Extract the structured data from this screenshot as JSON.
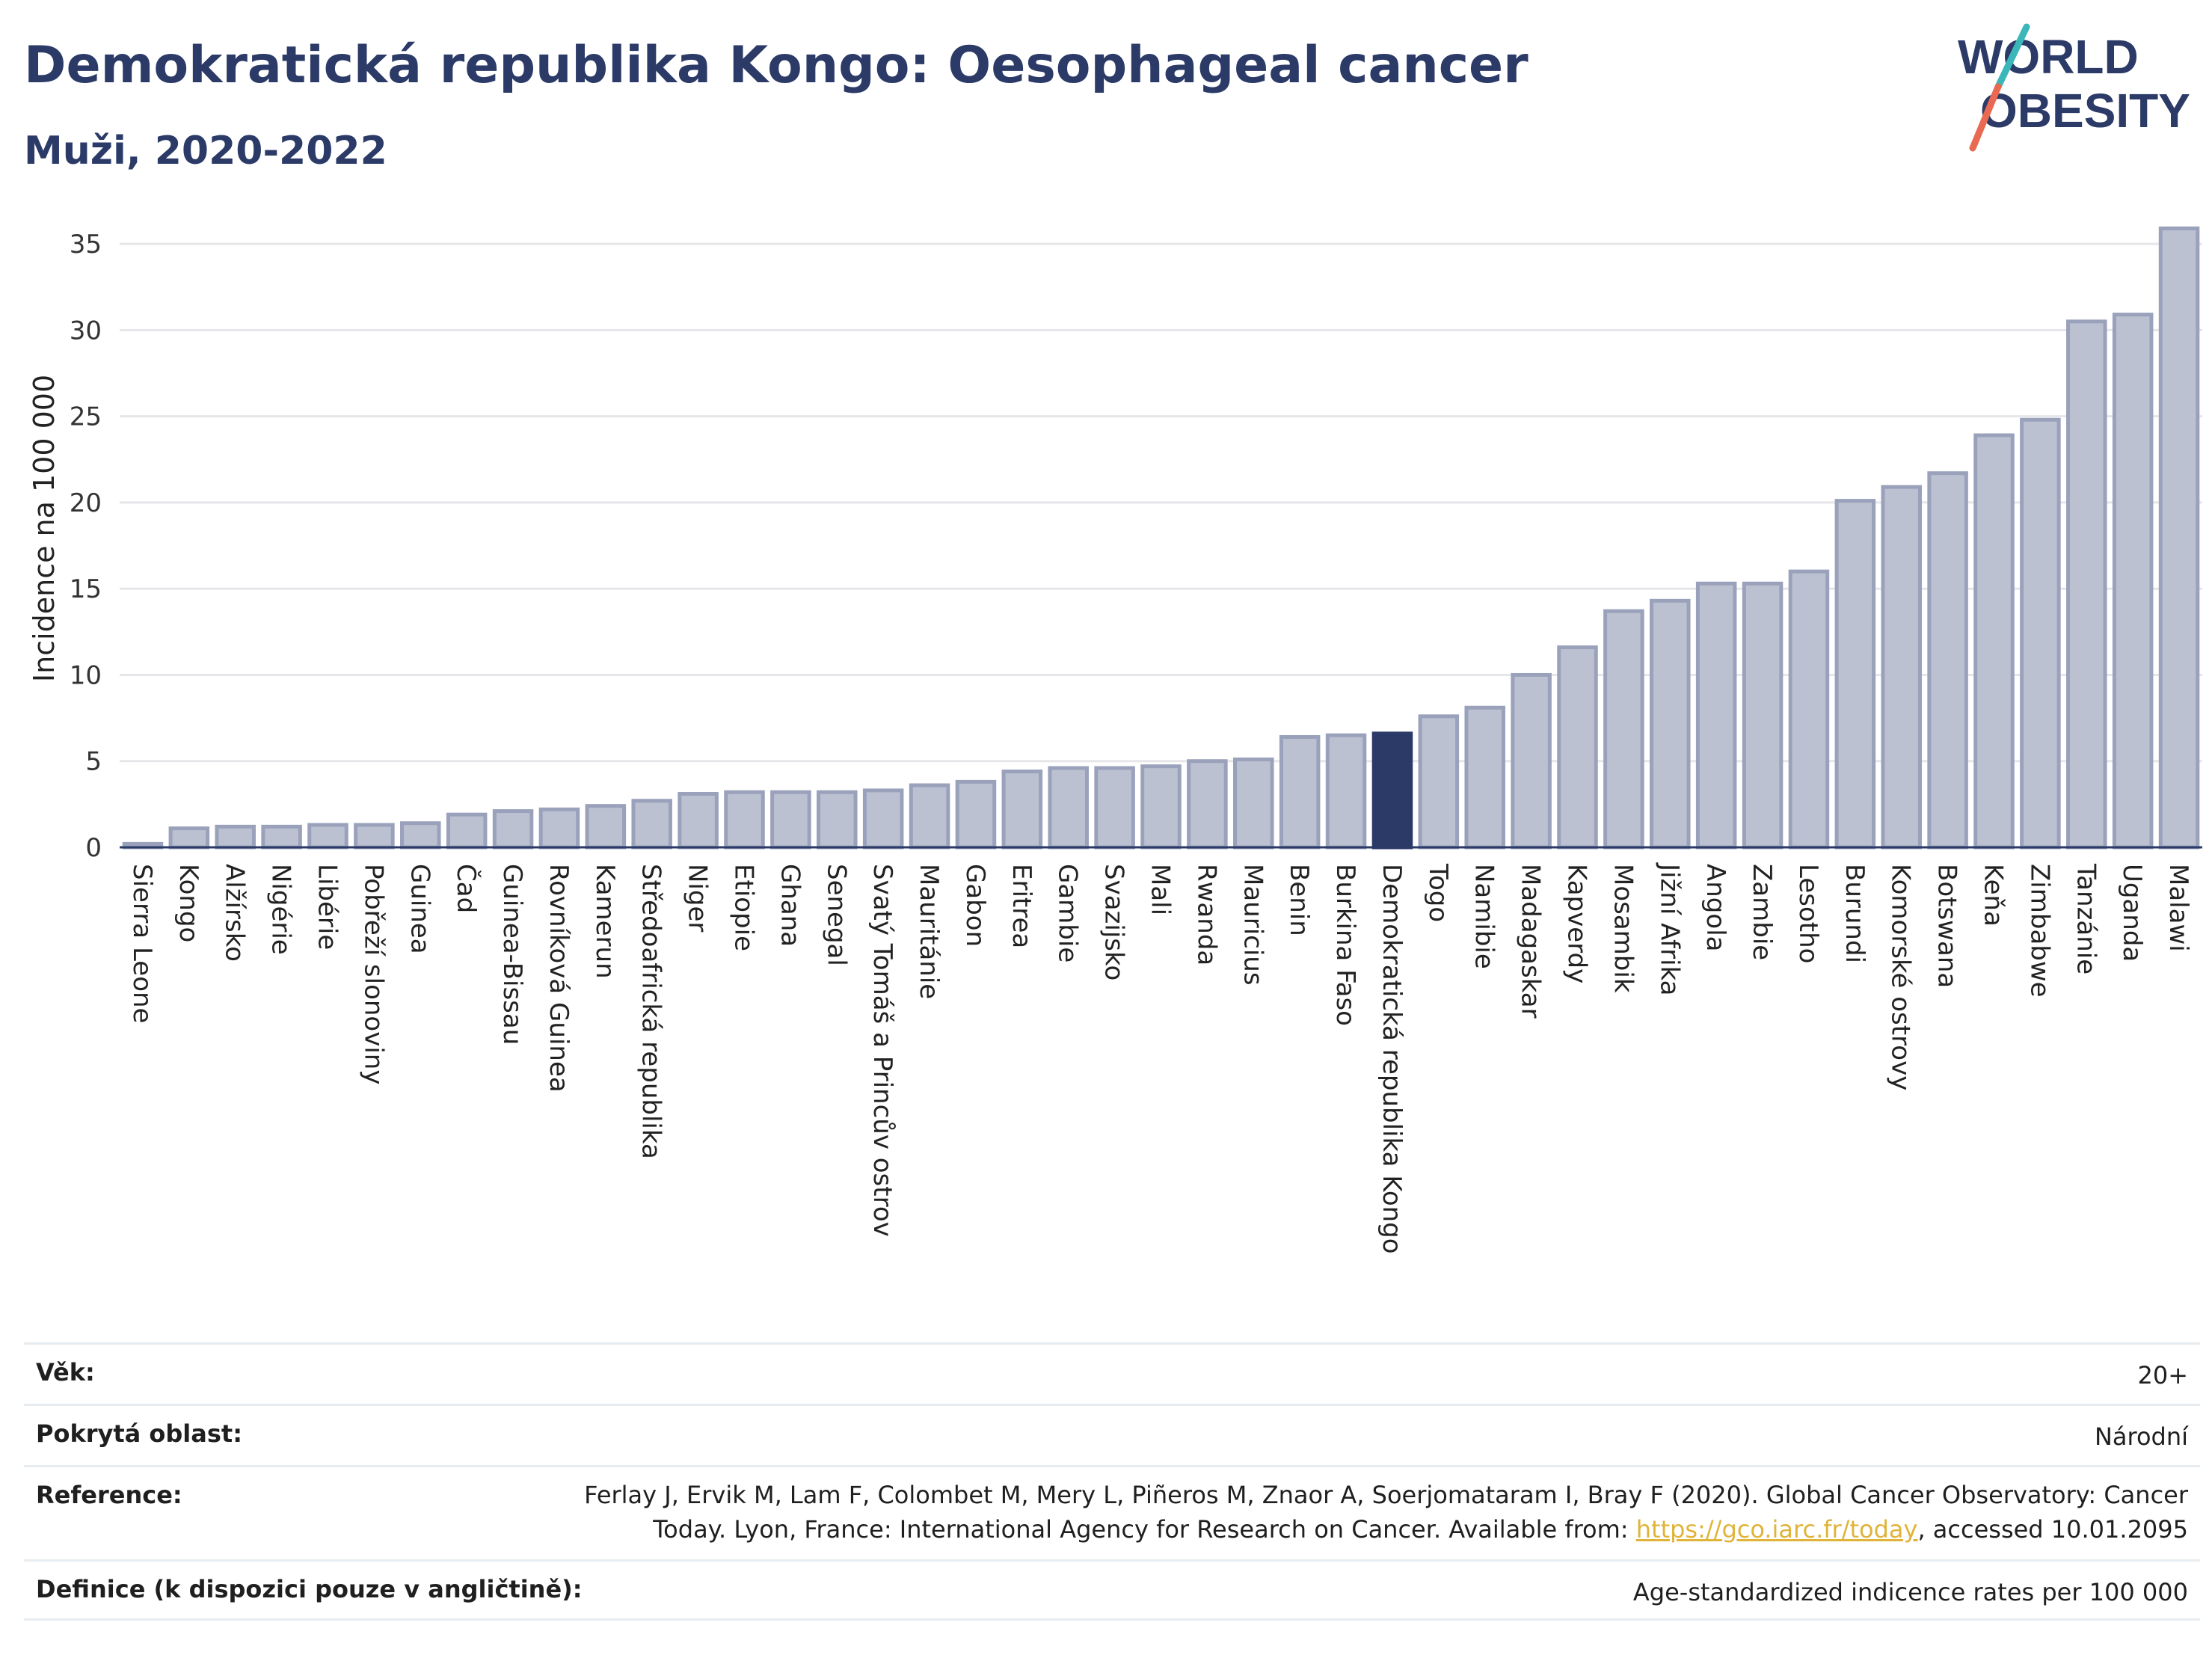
{
  "header": {
    "title": "Demokratická republika Kongo: Oesophageal cancer",
    "subtitle": "Muži, 2020-2022"
  },
  "logo": {
    "line1": "WORLD",
    "line2": "OBESITY",
    "text_color": "#2b3a67",
    "slash_colors": [
      "#3bb6b9",
      "#e96a52"
    ]
  },
  "chart_data": {
    "type": "bar",
    "ylabel": "Incidence na 100 000",
    "ylim": [
      0,
      37
    ],
    "yticks": [
      0,
      5,
      10,
      15,
      20,
      25,
      30,
      35
    ],
    "grid": true,
    "highlight": "Demokratická republika Kongo",
    "colors": {
      "bar": "#bcc1d1",
      "bar_border": "#9aa1bb",
      "highlight": "#2b3a67",
      "grid": "#e6e6ea"
    },
    "categories": [
      "Sierra Leone",
      "Kongo",
      "Alžírsko",
      "Nigérie",
      "Libérie",
      "Pobřeží slonoviny",
      "Guinea",
      "Čad",
      "Guinea-Bissau",
      "Rovníková Guinea",
      "Kamerun",
      "Středoafrická republika",
      "Niger",
      "Etiopie",
      "Ghana",
      "Senegal",
      "Svatý Tomáš a Princův ostrov",
      "Mauritánie",
      "Gabon",
      "Eritrea",
      "Gambie",
      "Svazijsko",
      "Mali",
      "Rwanda",
      "Mauricius",
      "Benin",
      "Burkina Faso",
      "Demokratická republika Kongo",
      "Togo",
      "Namibie",
      "Madagaskar",
      "Kapverdy",
      "Mosambik",
      "Jižní Afrika",
      "Angola",
      "Zambie",
      "Lesotho",
      "Burundi",
      "Komorské ostrovy",
      "Botswana",
      "Keňa",
      "Zimbabwe",
      "Tanzánie",
      "Uganda",
      "Malawi"
    ],
    "values": [
      0.2,
      1.1,
      1.2,
      1.2,
      1.3,
      1.3,
      1.4,
      1.9,
      2.1,
      2.2,
      2.4,
      2.7,
      3.1,
      3.2,
      3.2,
      3.2,
      3.3,
      3.6,
      3.8,
      4.4,
      4.6,
      4.6,
      4.7,
      5.0,
      5.1,
      6.4,
      6.5,
      6.6,
      7.6,
      8.1,
      10.0,
      11.6,
      13.7,
      14.3,
      15.3,
      15.3,
      16.0,
      20.1,
      20.9,
      21.7,
      23.9,
      24.8,
      30.5,
      30.9,
      35.9
    ]
  },
  "info": {
    "age_label": "Věk:",
    "age_value": "20+",
    "area_label": "Pokrytá oblast:",
    "area_value": "Národní",
    "reference_label": "Reference:",
    "reference_line1": "Ferlay J, Ervik M, Lam F, Colombet M, Mery L, Piñeros M, Znaor A, Soerjomataram I, Bray F (2020). Global Cancer Observatory: Cancer",
    "reference_line2_pre": "Today. Lyon, France: International Agency for Research on Cancer. Available from: ",
    "reference_link": "https://gco.iarc.fr/today",
    "reference_line2_post": ", accessed 10.01.2095",
    "definition_label": "Definice (k dispozici pouze v angličtině):",
    "definition_value": "Age-standardized indicence rates per 100 000"
  }
}
